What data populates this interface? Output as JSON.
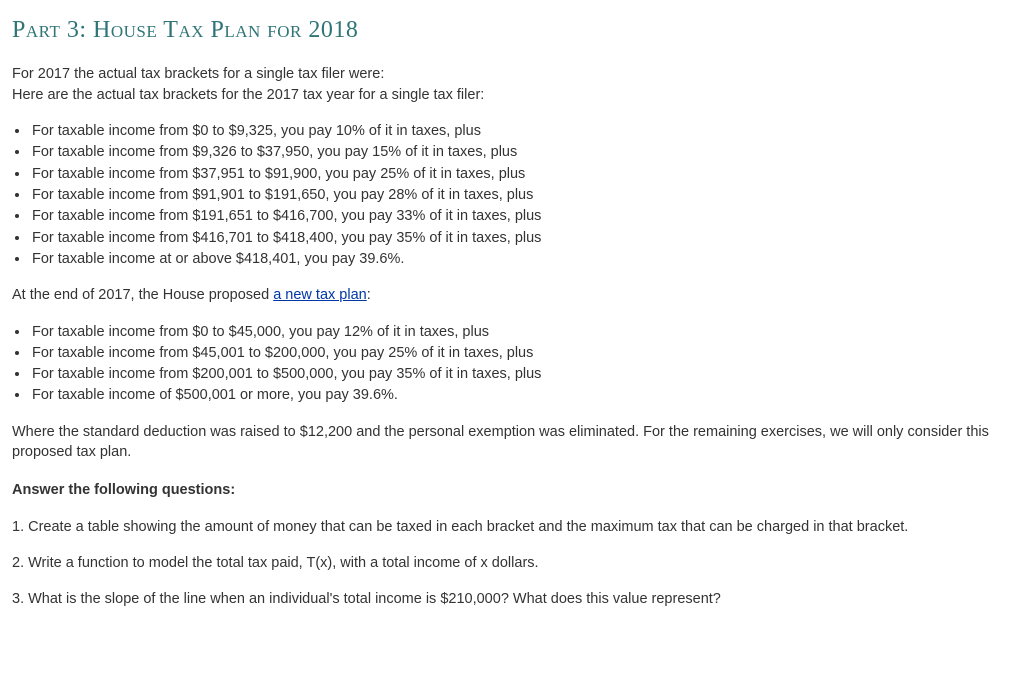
{
  "heading": "Part 3: House Tax Plan for 2018",
  "intro": {
    "line1": "For 2017 the actual tax brackets for a single tax filer were:",
    "line2": "Here are the actual tax brackets for the 2017 tax year for a single tax filer:"
  },
  "brackets2017": [
    "For taxable income from $0 to $9,325, you pay 10% of it in taxes, plus",
    "For taxable income from $9,326 to $37,950, you pay 15% of it in taxes, plus",
    "For taxable income from $37,951 to $91,900, you pay 25% of it in taxes, plus",
    "For taxable income from $91,901 to $191,650, you pay 28% of it in taxes, plus",
    "For taxable income from $191,651 to $416,700, you pay 33% of it in taxes, plus",
    "For taxable income from $416,701 to $418,400, you pay 35% of it in taxes, plus",
    "For taxable income at or above $418,401, you pay 39.6%."
  ],
  "proposedIntro": {
    "prefix": "At the end of 2017, the House proposed ",
    "linkText": "a new tax plan",
    "suffix": ":"
  },
  "brackets2018": [
    "For taxable income from $0 to $45,000, you pay 12% of it in taxes, plus",
    "For taxable income from $45,001 to $200,000, you pay 25% of it in taxes, plus",
    "For taxable income from $200,001 to $500,000, you pay 35% of it in taxes, plus",
    "For taxable income of $500,001 or more, you pay 39.6%."
  ],
  "deductionNote": "Where the standard deduction was raised to $12,200 and the personal exemption was eliminated. For the remaining exercises, we will only consider this proposed tax plan.",
  "answerHeading": "Answer the following questions:",
  "questions": {
    "q1": "1. Create a table showing the amount of money that can be taxed in each bracket and the maximum tax that can be charged in that bracket.",
    "q2": "2. Write a function to model the total tax paid, T(x), with a total income of x dollars.",
    "q3": "3. What is the slope of the line when an individual's total income is $210,000? What does this value represent?"
  },
  "colors": {
    "heading": "#2f7576",
    "text": "#333333",
    "link": "#0037a6",
    "background": "#ffffff"
  }
}
